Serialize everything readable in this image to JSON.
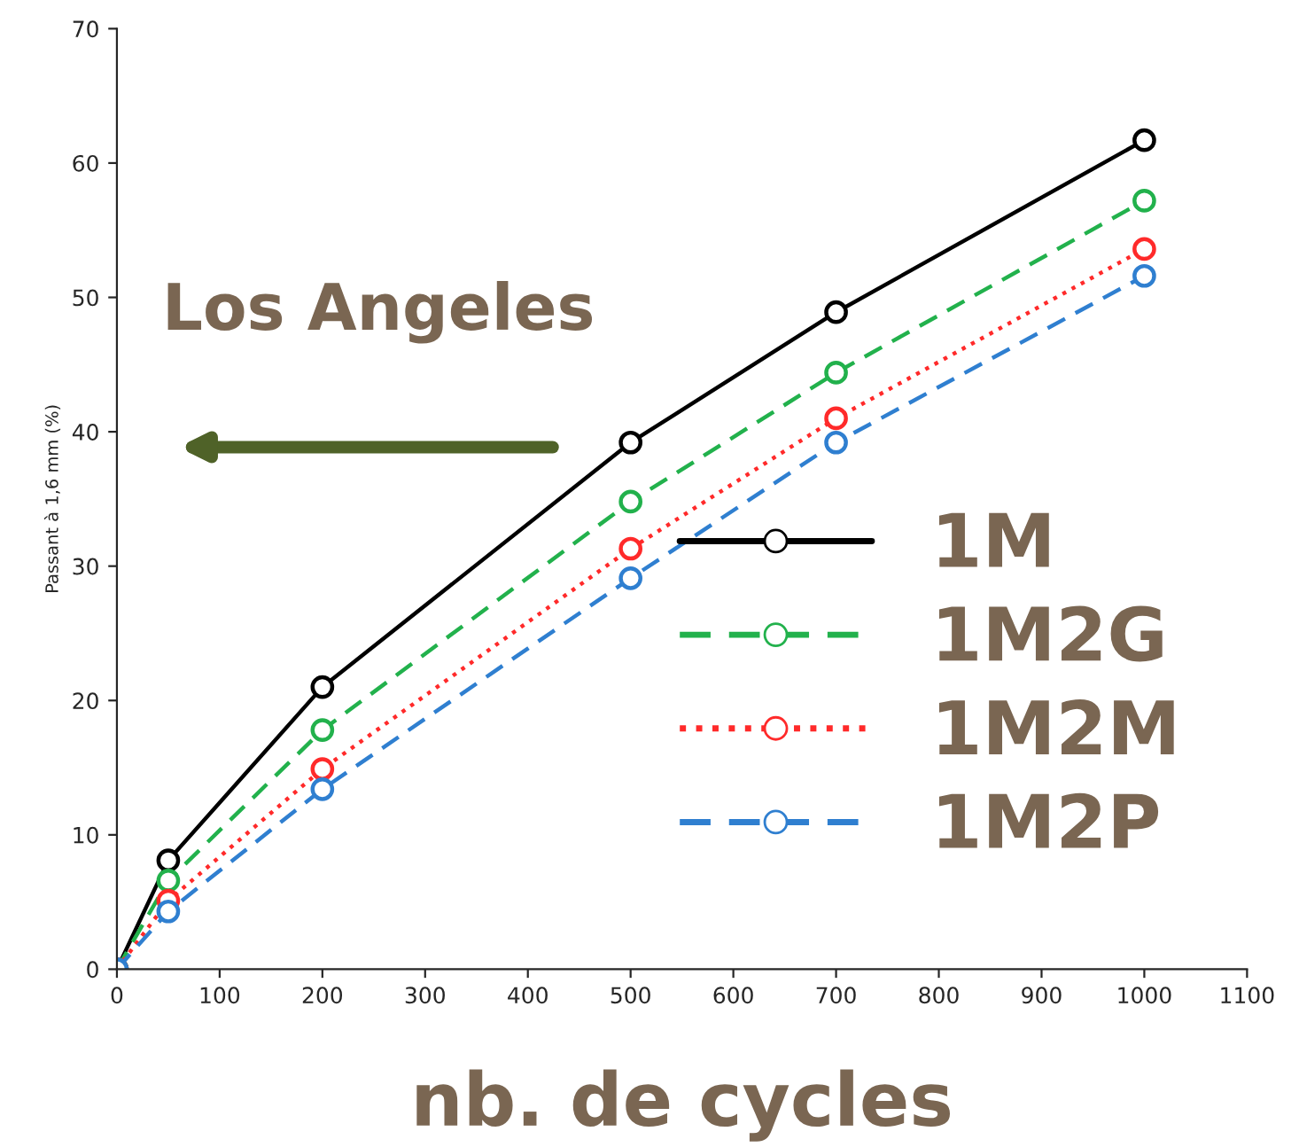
{
  "chart_data": {
    "type": "line",
    "xlabel": "nb. de cycles",
    "ylabel": "Passant à 1,6 mm (%)",
    "x": [
      0,
      50,
      200,
      500,
      700,
      1000
    ],
    "series": [
      {
        "name": "1M",
        "color": "#000000",
        "line_style": "solid",
        "values": [
          0,
          8.1,
          21,
          39.2,
          48.9,
          61.7
        ]
      },
      {
        "name": "1M2G",
        "color": "#22b14c",
        "line_style": "dashed",
        "values": [
          0,
          6.6,
          17.8,
          34.8,
          44.4,
          57.2
        ]
      },
      {
        "name": "1M2M",
        "color": "#ff2a2a",
        "line_style": "dotted",
        "values": [
          0,
          5.1,
          14.9,
          31.3,
          41,
          53.6
        ]
      },
      {
        "name": "1M2P",
        "color": "#2f7fd0",
        "line_style": "dashed",
        "values": [
          0,
          4.3,
          13.4,
          29.1,
          39.2,
          51.6
        ]
      }
    ],
    "xlim": [
      0,
      1100
    ],
    "xticks": [
      0,
      100,
      200,
      300,
      400,
      500,
      600,
      700,
      800,
      900,
      1000,
      1100
    ],
    "ylim": [
      0,
      70
    ],
    "yticks": [
      0,
      10,
      20,
      30,
      40,
      50,
      60,
      70
    ],
    "annotations": [
      "Los Angeles"
    ],
    "marker": "circle",
    "grid": false,
    "legend": "right"
  }
}
